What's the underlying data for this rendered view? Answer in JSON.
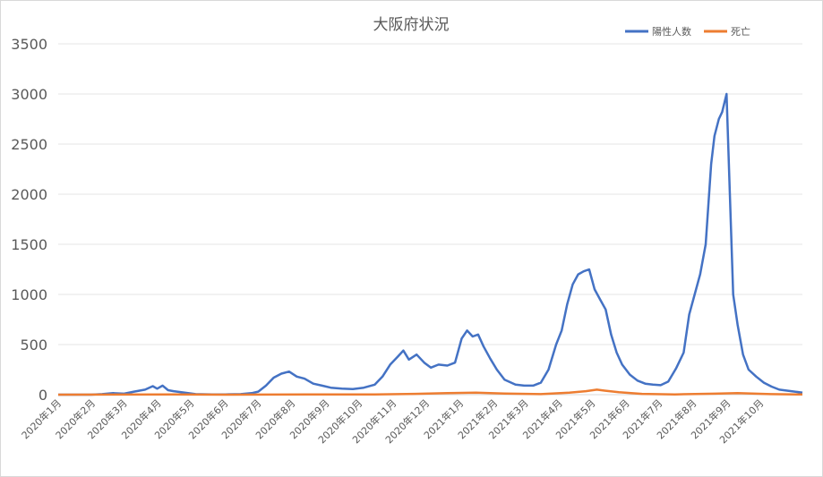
{
  "chart_data": {
    "type": "line",
    "title": "大阪府状況",
    "xlabel": "",
    "ylabel": "",
    "ylim": [
      0,
      3500
    ],
    "yticks": [
      0,
      500,
      1000,
      1500,
      2000,
      2500,
      3000,
      3500
    ],
    "ytick_labels": [
      "0",
      "500",
      "1000",
      "1500",
      "2000",
      "2500",
      "3000",
      "3500"
    ],
    "x_start": "2020-01-01",
    "x_end": "2021-11-08",
    "x_tick_labels": [
      "2020年1月",
      "2020年2月",
      "2020年3月",
      "2020年4月",
      "2020年5月",
      "2020年6月",
      "2020年7月",
      "2020年8月",
      "2020年9月",
      "2020年10月",
      "2020年11月",
      "2020年12月",
      "2021年1月",
      "2021年2月",
      "2021年3月",
      "2021年4月",
      "2021年5月",
      "2021年6月",
      "2021年7月",
      "2021年8月",
      "2021年9月",
      "2021年10月"
    ],
    "x_tick_dates": [
      "2020-01-01",
      "2020-02-01",
      "2020-03-01",
      "2020-04-01",
      "2020-05-01",
      "2020-06-01",
      "2020-07-01",
      "2020-08-01",
      "2020-09-01",
      "2020-10-01",
      "2020-11-01",
      "2020-12-01",
      "2021-01-01",
      "2021-02-01",
      "2021-03-01",
      "2021-04-01",
      "2021-05-01",
      "2021-06-01",
      "2021-07-01",
      "2021-08-01",
      "2021-09-01",
      "2021-10-01"
    ],
    "grid": true,
    "legend_position": "top-right",
    "series": [
      {
        "name": "陽性人数",
        "color": "#4472c4",
        "points": [
          [
            "2020-01-01",
            0
          ],
          [
            "2020-01-31",
            0
          ],
          [
            "2020-02-10",
            5
          ],
          [
            "2020-02-20",
            15
          ],
          [
            "2020-03-01",
            10
          ],
          [
            "2020-03-10",
            30
          ],
          [
            "2020-03-20",
            50
          ],
          [
            "2020-03-27",
            85
          ],
          [
            "2020-03-31",
            60
          ],
          [
            "2020-04-05",
            90
          ],
          [
            "2020-04-10",
            45
          ],
          [
            "2020-04-15",
            35
          ],
          [
            "2020-04-25",
            20
          ],
          [
            "2020-05-05",
            5
          ],
          [
            "2020-05-20",
            2
          ],
          [
            "2020-06-01",
            3
          ],
          [
            "2020-06-15",
            5
          ],
          [
            "2020-06-25",
            15
          ],
          [
            "2020-07-01",
            30
          ],
          [
            "2020-07-08",
            90
          ],
          [
            "2020-07-15",
            170
          ],
          [
            "2020-07-22",
            210
          ],
          [
            "2020-07-29",
            230
          ],
          [
            "2020-08-05",
            180
          ],
          [
            "2020-08-12",
            160
          ],
          [
            "2020-08-20",
            110
          ],
          [
            "2020-08-28",
            90
          ],
          [
            "2020-09-05",
            70
          ],
          [
            "2020-09-15",
            60
          ],
          [
            "2020-09-25",
            55
          ],
          [
            "2020-10-05",
            70
          ],
          [
            "2020-10-15",
            100
          ],
          [
            "2020-10-22",
            180
          ],
          [
            "2020-10-29",
            300
          ],
          [
            "2020-11-05",
            380
          ],
          [
            "2020-11-10",
            440
          ],
          [
            "2020-11-15",
            350
          ],
          [
            "2020-11-22",
            400
          ],
          [
            "2020-11-29",
            320
          ],
          [
            "2020-12-05",
            270
          ],
          [
            "2020-12-12",
            300
          ],
          [
            "2020-12-20",
            290
          ],
          [
            "2020-12-27",
            320
          ],
          [
            "2021-01-02",
            560
          ],
          [
            "2021-01-07",
            640
          ],
          [
            "2021-01-12",
            580
          ],
          [
            "2021-01-17",
            600
          ],
          [
            "2021-01-22",
            480
          ],
          [
            "2021-01-28",
            360
          ],
          [
            "2021-02-03",
            250
          ],
          [
            "2021-02-10",
            150
          ],
          [
            "2021-02-20",
            100
          ],
          [
            "2021-02-28",
            90
          ],
          [
            "2021-03-08",
            90
          ],
          [
            "2021-03-15",
            120
          ],
          [
            "2021-03-22",
            250
          ],
          [
            "2021-03-29",
            500
          ],
          [
            "2021-04-03",
            640
          ],
          [
            "2021-04-08",
            900
          ],
          [
            "2021-04-13",
            1100
          ],
          [
            "2021-04-18",
            1200
          ],
          [
            "2021-04-23",
            1230
          ],
          [
            "2021-04-28",
            1250
          ],
          [
            "2021-05-03",
            1050
          ],
          [
            "2021-05-08",
            950
          ],
          [
            "2021-05-13",
            850
          ],
          [
            "2021-05-18",
            600
          ],
          [
            "2021-05-23",
            420
          ],
          [
            "2021-05-28",
            300
          ],
          [
            "2021-06-04",
            200
          ],
          [
            "2021-06-11",
            140
          ],
          [
            "2021-06-18",
            110
          ],
          [
            "2021-06-25",
            100
          ],
          [
            "2021-07-02",
            95
          ],
          [
            "2021-07-09",
            130
          ],
          [
            "2021-07-16",
            260
          ],
          [
            "2021-07-23",
            420
          ],
          [
            "2021-07-28",
            800
          ],
          [
            "2021-08-02",
            1000
          ],
          [
            "2021-08-07",
            1200
          ],
          [
            "2021-08-12",
            1500
          ],
          [
            "2021-08-17",
            2300
          ],
          [
            "2021-08-20",
            2580
          ],
          [
            "2021-08-24",
            2750
          ],
          [
            "2021-08-27",
            2820
          ],
          [
            "2021-08-31",
            3000
          ],
          [
            "2021-09-03",
            2000
          ],
          [
            "2021-09-06",
            1000
          ],
          [
            "2021-09-10",
            700
          ],
          [
            "2021-09-15",
            400
          ],
          [
            "2021-09-20",
            250
          ],
          [
            "2021-09-27",
            180
          ],
          [
            "2021-10-04",
            120
          ],
          [
            "2021-10-11",
            80
          ],
          [
            "2021-10-18",
            50
          ],
          [
            "2021-10-25",
            40
          ],
          [
            "2021-11-01",
            30
          ],
          [
            "2021-11-08",
            20
          ]
        ]
      },
      {
        "name": "死亡",
        "color": "#ed7d31",
        "points": [
          [
            "2020-01-01",
            0
          ],
          [
            "2020-04-15",
            2
          ],
          [
            "2020-06-01",
            0
          ],
          [
            "2020-08-15",
            3
          ],
          [
            "2020-10-15",
            2
          ],
          [
            "2020-11-20",
            8
          ],
          [
            "2020-12-20",
            15
          ],
          [
            "2021-01-15",
            20
          ],
          [
            "2021-02-10",
            12
          ],
          [
            "2021-03-15",
            5
          ],
          [
            "2021-04-10",
            20
          ],
          [
            "2021-04-25",
            35
          ],
          [
            "2021-05-05",
            50
          ],
          [
            "2021-05-12",
            40
          ],
          [
            "2021-05-25",
            25
          ],
          [
            "2021-06-15",
            8
          ],
          [
            "2021-07-15",
            3
          ],
          [
            "2021-08-20",
            10
          ],
          [
            "2021-09-10",
            15
          ],
          [
            "2021-10-10",
            5
          ],
          [
            "2021-11-08",
            2
          ]
        ]
      }
    ]
  }
}
